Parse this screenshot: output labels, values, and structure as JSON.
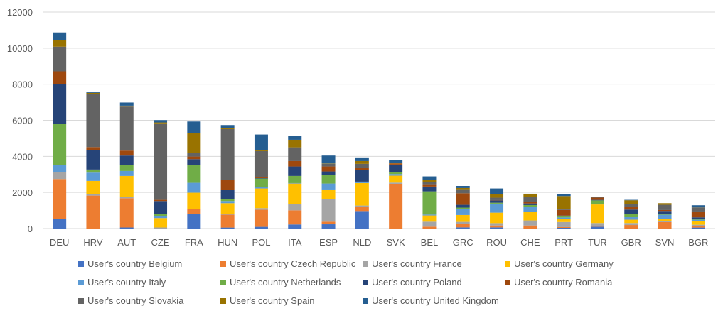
{
  "chart_data": {
    "type": "bar",
    "stacked": true,
    "title": "",
    "xlabel": "",
    "ylabel": "",
    "ylim": [
      0,
      12000
    ],
    "yticks": [
      0,
      2000,
      4000,
      6000,
      8000,
      10000,
      12000
    ],
    "grid": true,
    "legend_position": "bottom",
    "categories": [
      "DEU",
      "HRV",
      "AUT",
      "CZE",
      "FRA",
      "HUN",
      "POL",
      "ITA",
      "ESP",
      "NLD",
      "SVK",
      "BEL",
      "GRC",
      "ROU",
      "CHE",
      "PRT",
      "TUR",
      "GBR",
      "SVN",
      "BGR"
    ],
    "series": [
      {
        "name": "User's country Belgium",
        "color": "#4472C4",
        "values": [
          530,
          0,
          60,
          0,
          815,
          55,
          95,
          225,
          235,
          970,
          0,
          0,
          65,
          65,
          0,
          40,
          105,
          0,
          0,
          55
        ]
      },
      {
        "name": "User's country Czech Republic",
        "color": "#ED7D31",
        "values": [
          2215,
          1825,
          1620,
          0,
          250,
          710,
          945,
          785,
          145,
          225,
          2480,
          105,
          200,
          105,
          170,
          40,
          30,
          195,
          355,
          80
        ]
      },
      {
        "name": "User's country France",
        "color": "#A5A5A5",
        "values": [
          365,
          65,
          55,
          60,
          0,
          35,
          90,
          330,
          1235,
          80,
          65,
          275,
          105,
          130,
          280,
          280,
          170,
          110,
          40,
          75
        ]
      },
      {
        "name": "User's country Germany",
        "color": "#FFC000",
        "values": [
          0,
          750,
          1180,
          520,
          920,
          605,
          1090,
          1155,
          550,
          1245,
          385,
          345,
          380,
          580,
          480,
          160,
          1030,
          185,
          145,
          185
        ]
      },
      {
        "name": "User's country Italy",
        "color": "#5B9BD5",
        "values": [
          395,
          460,
          275,
          115,
          550,
          120,
          90,
          25,
          330,
          40,
          90,
          50,
          330,
          500,
          280,
          95,
          25,
          140,
          225,
          95
        ]
      },
      {
        "name": "User's country Netherlands",
        "color": "#70AD47",
        "values": [
          2285,
          170,
          340,
          120,
          995,
          90,
          460,
          395,
          460,
          40,
          90,
          1285,
          80,
          50,
          90,
          80,
          200,
          160,
          60,
          40
        ]
      },
      {
        "name": "User's country Poland",
        "color": "#264478",
        "values": [
          2210,
          1090,
          515,
          710,
          315,
          540,
          25,
          525,
          210,
          655,
          435,
          265,
          155,
          130,
          90,
          25,
          30,
          260,
          150,
          90
        ]
      },
      {
        "name": "User's country Romania",
        "color": "#9E480E",
        "values": [
          715,
          155,
          275,
          65,
          145,
          525,
          40,
          300,
          275,
          120,
          65,
          130,
          640,
          15,
          70,
          310,
          120,
          130,
          50,
          325
        ]
      },
      {
        "name": "User's country Slovakia",
        "color": "#636363",
        "values": [
          1365,
          2925,
          2440,
          4240,
          210,
          2830,
          1455,
          760,
          145,
          210,
          0,
          130,
          225,
          135,
          275,
          50,
          25,
          175,
          290,
          215
        ]
      },
      {
        "name": "User's country Spain",
        "color": "#997300",
        "values": [
          380,
          80,
          50,
          50,
          1100,
          40,
          70,
          420,
          20,
          155,
          30,
          105,
          65,
          180,
          155,
          720,
          0,
          210,
          90,
          10
        ]
      },
      {
        "name": "User's country United Kingdom",
        "color": "#255E91",
        "values": [
          410,
          70,
          175,
          130,
          630,
          185,
          850,
          200,
          440,
          200,
          165,
          200,
          115,
          330,
          40,
          95,
          30,
          25,
          0,
          120
        ]
      }
    ]
  }
}
